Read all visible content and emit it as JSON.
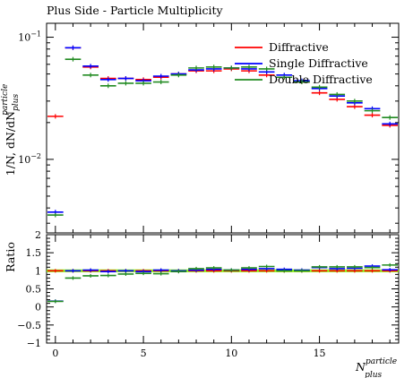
{
  "chart_data": [
    {
      "type": "scatter",
      "panel": "main",
      "title": "Plus Side - Particle Multiplicity",
      "ylabel": "1/N, dN/dN",
      "ylabel_sup": "particle",
      "ylabel_sub": "plus",
      "yscale": "log",
      "ylim": [
        0.0025,
        0.13
      ],
      "xlim": [
        -0.5,
        19.5
      ],
      "yticks": [
        {
          "value": 0.1,
          "label": "10",
          "exp": "−1"
        },
        {
          "value": 0.01,
          "label": "10",
          "exp": "−2"
        }
      ],
      "legend_position": "top-right",
      "series": [
        {
          "name": "Diffractive",
          "color": "#ff0000",
          "x": [
            0,
            1,
            2,
            3,
            4,
            5,
            6,
            7,
            8,
            9,
            10,
            11,
            12,
            13,
            14,
            15,
            16,
            17,
            18,
            19
          ],
          "y": [
            0.0225,
            0.082,
            0.057,
            0.046,
            0.046,
            0.045,
            0.047,
            0.05,
            0.053,
            0.053,
            0.055,
            0.053,
            0.049,
            0.047,
            0.043,
            0.035,
            0.031,
            0.027,
            0.023,
            0.019
          ]
        },
        {
          "name": "Single Diffractive",
          "color": "#0000ff",
          "x": [
            0,
            1,
            2,
            3,
            4,
            5,
            6,
            7,
            8,
            9,
            10,
            11,
            12,
            13,
            14,
            15,
            16,
            17,
            18,
            19
          ],
          "y": [
            0.0037,
            0.082,
            0.058,
            0.045,
            0.046,
            0.044,
            0.048,
            0.05,
            0.054,
            0.055,
            0.056,
            0.055,
            0.052,
            0.049,
            0.044,
            0.038,
            0.033,
            0.029,
            0.026,
            0.0195
          ]
        },
        {
          "name": "Double Diffractive",
          "color": "#228b22",
          "x": [
            0,
            1,
            2,
            3,
            4,
            5,
            6,
            7,
            8,
            9,
            10,
            11,
            12,
            13,
            14,
            15,
            16,
            17,
            18,
            19
          ],
          "y": [
            0.0035,
            0.066,
            0.049,
            0.04,
            0.042,
            0.042,
            0.043,
            0.049,
            0.056,
            0.057,
            0.056,
            0.057,
            0.055,
            0.047,
            0.043,
            0.039,
            0.034,
            0.03,
            0.025,
            0.022
          ]
        }
      ]
    },
    {
      "type": "scatter",
      "panel": "ratio",
      "ylabel": "Ratio",
      "xlabel": "N",
      "xlabel_sup": "particle",
      "xlabel_sub": "plus",
      "ylim": [
        -1,
        2
      ],
      "xlim": [
        -0.5,
        19.5
      ],
      "yticks": [
        -1,
        -0.5,
        0,
        0.5,
        1,
        1.5,
        2
      ],
      "yticklabels": [
        "−1",
        "−0.5",
        "0",
        "0.5",
        "1",
        "1.5",
        "2"
      ],
      "xticks": [
        0,
        5,
        10,
        15
      ],
      "reference_line": 1,
      "series": [
        {
          "name": "Diffractive",
          "color": "#ff0000",
          "x": [
            0,
            1,
            2,
            3,
            4,
            5,
            6,
            7,
            8,
            9,
            10,
            11,
            12,
            13,
            14,
            15,
            16,
            17,
            18,
            19
          ],
          "y": [
            1,
            1,
            1,
            1,
            1,
            1,
            1,
            1,
            1,
            1,
            1,
            1,
            1,
            1,
            1,
            1,
            1,
            1,
            1,
            1
          ]
        },
        {
          "name": "Single Diffractive",
          "color": "#0000ff",
          "x": [
            0,
            1,
            2,
            3,
            4,
            5,
            6,
            7,
            8,
            9,
            10,
            11,
            12,
            13,
            14,
            15,
            16,
            17,
            18,
            19
          ],
          "y": [
            0.16,
            1.0,
            1.02,
            0.98,
            1.0,
            0.98,
            1.02,
            1.0,
            1.02,
            1.04,
            1.02,
            1.04,
            1.06,
            1.04,
            1.02,
            1.09,
            1.06,
            1.07,
            1.13,
            1.03
          ]
        },
        {
          "name": "Double Diffractive",
          "color": "#228b22",
          "x": [
            0,
            1,
            2,
            3,
            4,
            5,
            6,
            7,
            8,
            9,
            10,
            11,
            12,
            13,
            14,
            15,
            16,
            17,
            18,
            19
          ],
          "y": [
            0.155,
            0.8,
            0.86,
            0.87,
            0.91,
            0.93,
            0.92,
            0.98,
            1.06,
            1.08,
            1.02,
            1.08,
            1.12,
            1.0,
            1.0,
            1.11,
            1.11,
            1.11,
            1.09,
            1.16
          ]
        }
      ]
    }
  ]
}
